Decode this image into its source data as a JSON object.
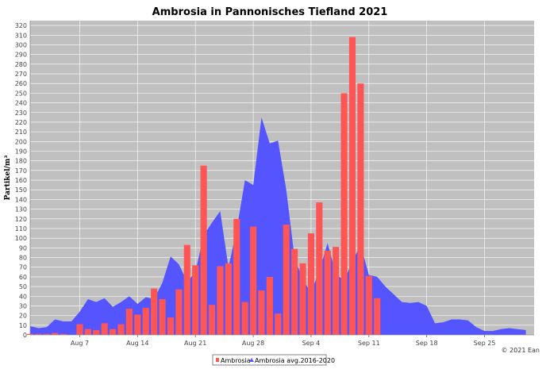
{
  "chart_data": {
    "type": "bar+area",
    "title": "Ambrosia in Pannonisches Tiefland 2021",
    "ylabel": "Partikel/m³",
    "xlabel": "",
    "ylim": [
      0,
      325
    ],
    "yticks": [
      0,
      10,
      20,
      30,
      40,
      50,
      60,
      70,
      80,
      90,
      100,
      110,
      120,
      130,
      140,
      150,
      160,
      170,
      180,
      190,
      200,
      210,
      220,
      230,
      240,
      250,
      260,
      270,
      280,
      290,
      300,
      310,
      320
    ],
    "x_start": "Aug 1",
    "x_ticks": [
      {
        "label": "Aug 7",
        "day": 6
      },
      {
        "label": "Aug 14",
        "day": 13
      },
      {
        "label": "Aug 21",
        "day": 20
      },
      {
        "label": "Aug 28",
        "day": 27
      },
      {
        "label": "Sep 4",
        "day": 34
      },
      {
        "label": "Sep 11",
        "day": 41
      },
      {
        "label": "Sep 18",
        "day": 48
      },
      {
        "label": "Sep 25",
        "day": 55
      }
    ],
    "x_range": [
      0,
      61
    ],
    "grid": true,
    "legend_position": "bottom-center",
    "series": [
      {
        "name": "Ambrosia",
        "kind": "bar",
        "color": "#ff5555",
        "values": [
          1,
          1,
          1,
          2,
          1,
          0,
          11,
          6,
          5,
          12,
          6,
          11,
          27,
          21,
          28,
          48,
          37,
          18,
          47,
          93,
          72,
          175,
          31,
          71,
          74,
          120,
          34,
          112,
          46,
          60,
          22,
          114,
          89,
          74,
          105,
          137,
          87,
          91,
          250,
          308,
          260,
          61,
          38
        ]
      },
      {
        "name": "Ambrosia avg.2016-2020",
        "kind": "area",
        "color": "#5555ff",
        "values": [
          9,
          7,
          8,
          16,
          14,
          14,
          24,
          37,
          34,
          38,
          29,
          34,
          40,
          32,
          39,
          37,
          54,
          81,
          73,
          55,
          65,
          103,
          116,
          128,
          70,
          109,
          160,
          155,
          225,
          198,
          201,
          150,
          80,
          57,
          44,
          66,
          95,
          63,
          56,
          76,
          93,
          62,
          60,
          50,
          42,
          34,
          33,
          34,
          30,
          12,
          13,
          16,
          16,
          15,
          8,
          4,
          4,
          6,
          7,
          6,
          5
        ]
      }
    ]
  },
  "credit": "© 2021 Ean"
}
